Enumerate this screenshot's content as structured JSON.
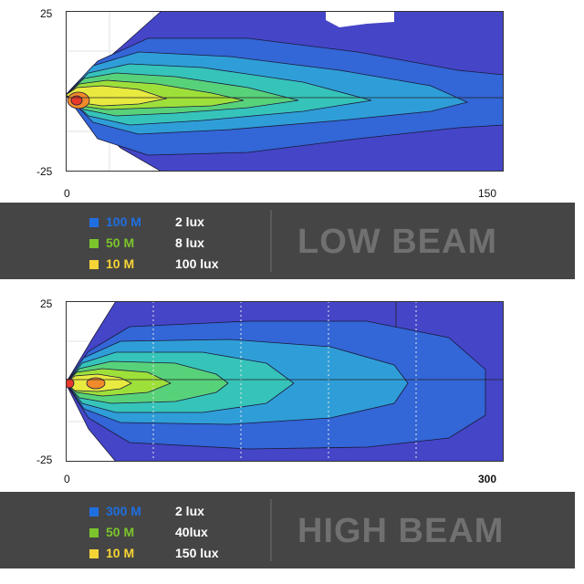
{
  "chart_data": [
    {
      "type": "heatmap",
      "x_ticks": [
        "0",
        "150"
      ],
      "y_ticks": [
        "25",
        "-25"
      ],
      "xlim": [
        0,
        150
      ],
      "ylim": [
        -25,
        25
      ],
      "legend": [
        {
          "distance": "100 M",
          "lux": "2 lux",
          "color": "#1f6fe0"
        },
        {
          "distance": "50 M",
          "lux": "8 lux",
          "color": "#7cc42c"
        },
        {
          "distance": "10 M",
          "lux": "100 lux",
          "color": "#f7d436"
        }
      ],
      "beam_label": "LOW BEAM"
    },
    {
      "type": "heatmap",
      "x_ticks": [
        "0",
        "300"
      ],
      "y_ticks": [
        "25",
        "-25"
      ],
      "xlim": [
        0,
        300
      ],
      "ylim": [
        -25,
        25
      ],
      "legend": [
        {
          "distance": "300 M",
          "lux": "2 lux",
          "color": "#1f6fe0"
        },
        {
          "distance": "50 M",
          "lux": "40lux",
          "color": "#7cc42c"
        },
        {
          "distance": "10 M",
          "lux": "150 lux",
          "color": "#f7d436"
        }
      ],
      "beam_label": "HIGH BEAM"
    }
  ],
  "colors": {
    "levels": [
      "#4545c8",
      "#3366d6",
      "#2f9ed8",
      "#36c4ba",
      "#58d27a",
      "#9ee03a",
      "#e8ea40",
      "#f08a2a",
      "#e83a2a"
    ],
    "legend_background": "#454545"
  }
}
